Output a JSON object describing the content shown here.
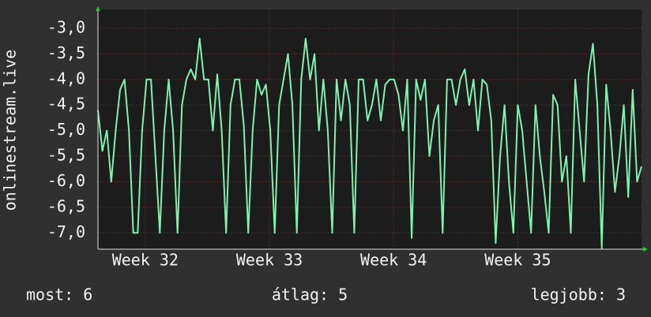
{
  "chart_data": {
    "type": "line",
    "y_label": "onlinestream.live",
    "color": "#80f0b0",
    "values": [
      -4.6,
      -5.4,
      -5.0,
      -6.0,
      -5.0,
      -4.2,
      -4.0,
      -5.0,
      -7.0,
      -7.0,
      -5.0,
      -4.0,
      -4.0,
      -5.5,
      -7.0,
      -5.0,
      -4.0,
      -5.0,
      -7.0,
      -4.5,
      -4.0,
      -3.8,
      -4.0,
      -3.2,
      -4.0,
      -4.0,
      -5.0,
      -3.9,
      -5.0,
      -7.0,
      -4.5,
      -4.0,
      -4.0,
      -4.9,
      -7.0,
      -5.0,
      -4.0,
      -4.3,
      -4.1,
      -5.0,
      -7.0,
      -4.5,
      -4.0,
      -3.5,
      -4.5,
      -7.0,
      -4.0,
      -3.2,
      -4.0,
      -3.5,
      -5.0,
      -4.0,
      -5.0,
      -7.0,
      -4.0,
      -4.8,
      -4.0,
      -4.5,
      -7.0,
      -4.0,
      -4.0,
      -4.8,
      -4.5,
      -4.0,
      -4.8,
      -4.1,
      -4.0,
      -4.0,
      -4.3,
      -5.0,
      -4.0,
      -7.1,
      -4.0,
      -4.4,
      -4.0,
      -5.5,
      -4.8,
      -4.5,
      -7.0,
      -4.0,
      -4.0,
      -4.5,
      -4.0,
      -3.8,
      -4.5,
      -4.0,
      -5.0,
      -4.0,
      -4.1,
      -4.8,
      -7.2,
      -5.5,
      -4.5,
      -6.0,
      -7.0,
      -4.5,
      -5.0,
      -6.0,
      -7.0,
      -4.5,
      -5.5,
      -6.2,
      -7.0,
      -4.3,
      -4.5,
      -6.0,
      -5.5,
      -7.0,
      -4.0,
      -5.0,
      -6.0,
      -3.9,
      -3.3,
      -4.5,
      -7.3,
      -4.1,
      -5.0,
      -6.2,
      -5.5,
      -4.5,
      -6.3,
      -4.2,
      -6.0,
      -5.7
    ],
    "xlim": [
      0,
      123
    ],
    "xticks": [
      {
        "value": 10.7,
        "label": "Week 32"
      },
      {
        "value": 38.8,
        "label": "Week 33"
      },
      {
        "value": 66.9,
        "label": "Week 34"
      },
      {
        "value": 95.0,
        "label": "Week 35"
      }
    ],
    "ylim": [
      -7.32,
      -2.63
    ],
    "yticks": [
      {
        "value": -3.0,
        "label": "-3,0"
      },
      {
        "value": -3.5,
        "label": "-3,5"
      },
      {
        "value": -4.0,
        "label": "-4,0"
      },
      {
        "value": -4.5,
        "label": "-4,5"
      },
      {
        "value": -5.0,
        "label": "-5,0"
      },
      {
        "value": -5.5,
        "label": "-5,5"
      },
      {
        "value": -6.0,
        "label": "-6,0"
      },
      {
        "value": -6.5,
        "label": "-6,5"
      },
      {
        "value": -7.0,
        "label": "-7,0"
      }
    ],
    "grid": true,
    "stats": [
      "most: 6",
      "átlag: 5",
      "legjobb: 3"
    ]
  }
}
